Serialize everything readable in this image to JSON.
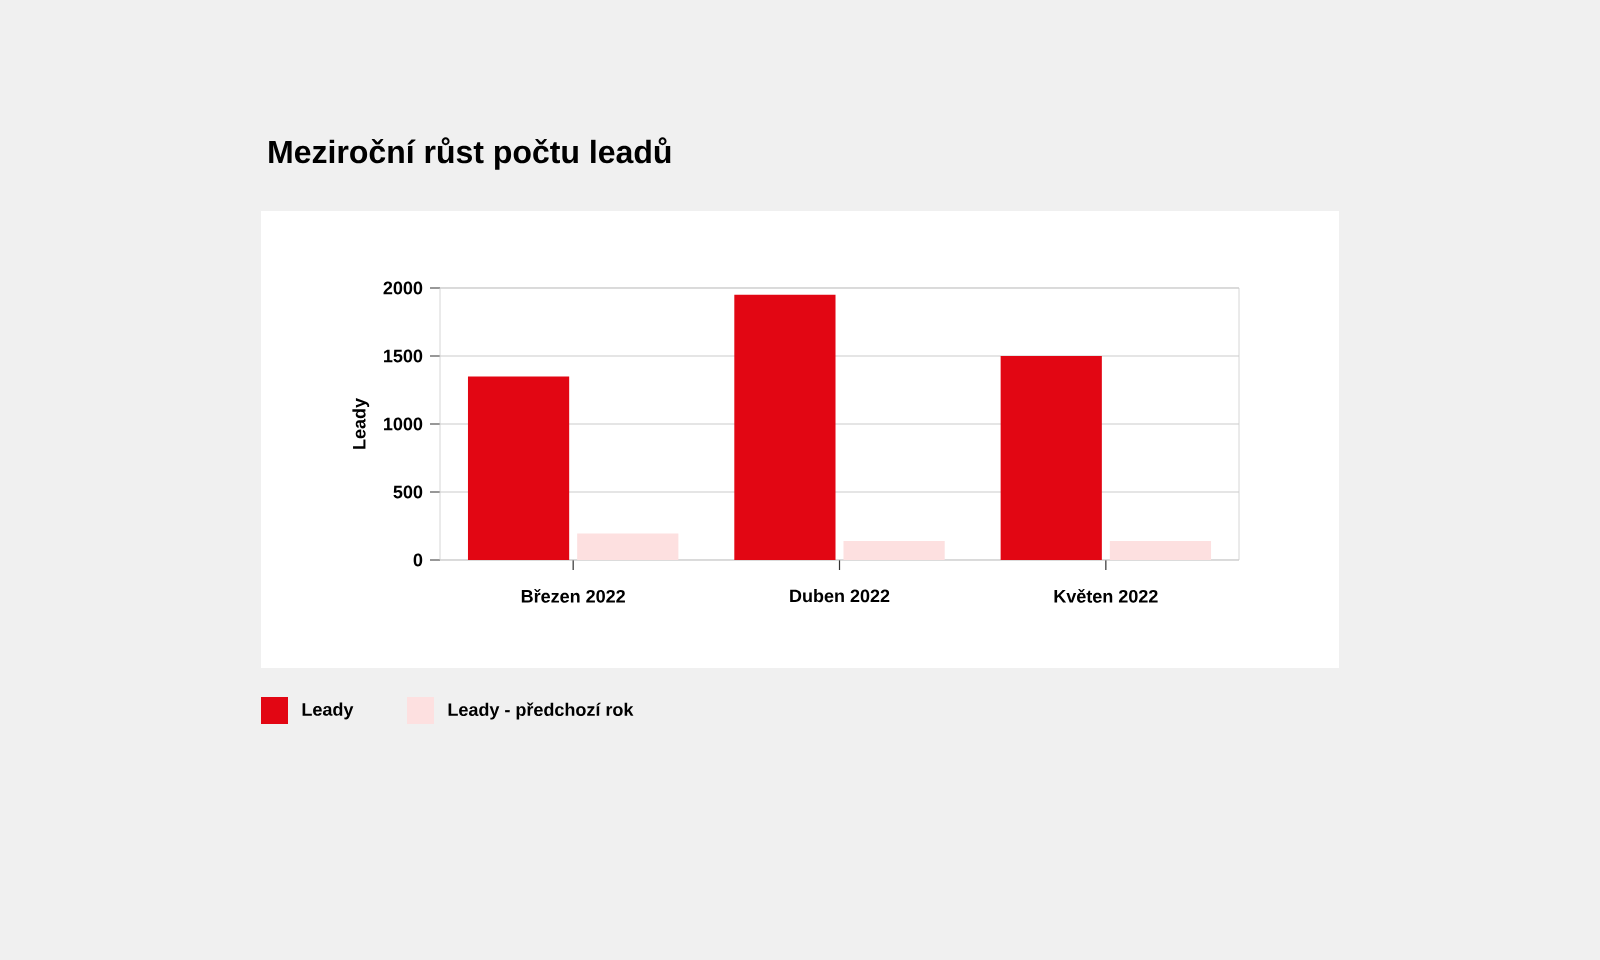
{
  "chart_data": {
    "type": "bar",
    "title": "Meziroční růst počtu leadů",
    "ylabel": "Leady",
    "categories": [
      "Březen 2022",
      "Duben 2022",
      "Květen 2022"
    ],
    "series": [
      {
        "name": "Leady",
        "color": "#e20613",
        "values": [
          1350,
          1950,
          1500
        ]
      },
      {
        "name": "Leady - předchozí rok",
        "color": "#fde0e0",
        "values": [
          195,
          140,
          140
        ]
      }
    ],
    "ylim": [
      0,
      2000
    ],
    "yticks": [
      0,
      500,
      1000,
      1500,
      2000
    ],
    "grid": "y",
    "legend": "bottom"
  }
}
